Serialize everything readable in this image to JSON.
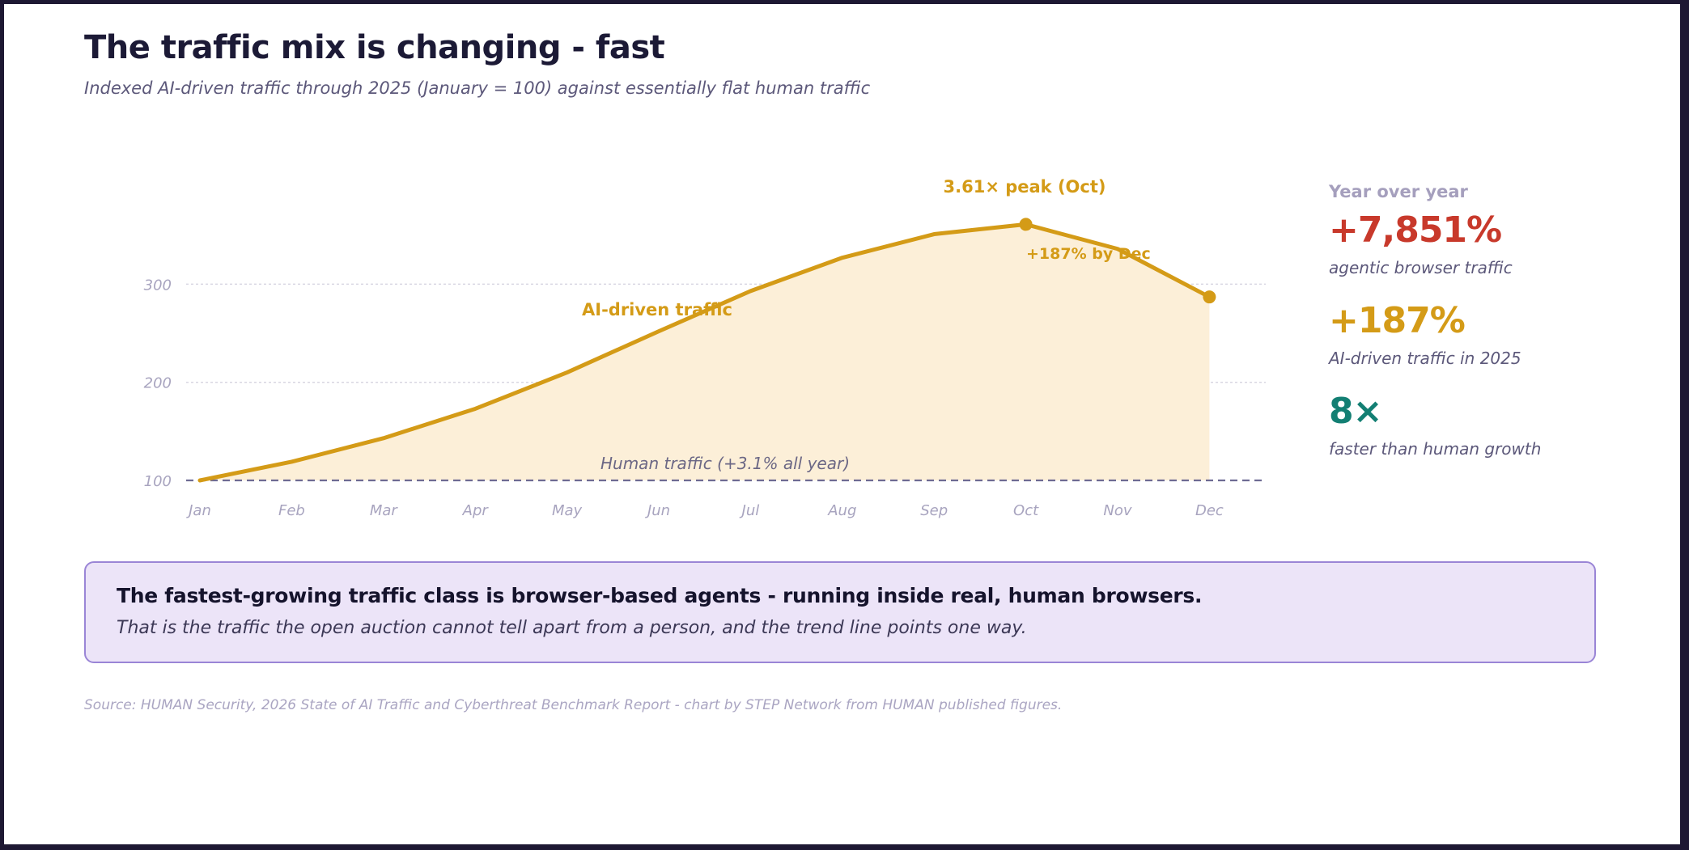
{
  "header": {
    "title": "The traffic mix is changing - fast",
    "subtitle": "Indexed AI-driven traffic through 2025 (January = 100) against essentially flat human traffic"
  },
  "chart_data": {
    "type": "area",
    "x": [
      "Jan",
      "Feb",
      "Mar",
      "Apr",
      "May",
      "Jun",
      "Jul",
      "Aug",
      "Sep",
      "Oct",
      "Nov",
      "Dec"
    ],
    "y_ticks": [
      100,
      200,
      300
    ],
    "ylim": [
      100,
      361
    ],
    "grid": true,
    "series": [
      {
        "name": "AI-driven traffic",
        "values": [
          100,
          119,
          143,
          173,
          210,
          252,
          293,
          327,
          351,
          361,
          336,
          287
        ],
        "color": "#d49b17",
        "fill": "#fcefd8"
      },
      {
        "name": "Human traffic (+3.1% all year)",
        "values": [
          100,
          100.3,
          100.6,
          100.8,
          101.1,
          101.4,
          101.7,
          102,
          102.3,
          102.6,
          102.8,
          103.1
        ],
        "color": "#6e6b93",
        "style": "dashed"
      }
    ],
    "annotations": [
      {
        "text": "3.61× peak (Oct)",
        "x": "Oct",
        "y": 361
      },
      {
        "text": "+187% by Dec",
        "x": "Dec",
        "y": 287
      }
    ]
  },
  "stats": {
    "heading": "Year over year",
    "items": [
      {
        "value": "+7,851%",
        "label": "agentic browser traffic",
        "color": "#c8392b"
      },
      {
        "value": "+187%",
        "label": "AI-driven traffic in 2025",
        "color": "#d49b17"
      },
      {
        "value": "8×",
        "label": "faster than human growth",
        "color": "#137f73"
      }
    ]
  },
  "callout": {
    "title": "The fastest-growing traffic class is browser-based agents - running inside real, human browsers.",
    "body": "That is the traffic the open auction cannot tell apart from a person, and the trend line points one way."
  },
  "source": "Source: HUMAN Security, 2026 State of AI Traffic and Cyberthreat Benchmark Report - chart by STEP Network from HUMAN published figures."
}
